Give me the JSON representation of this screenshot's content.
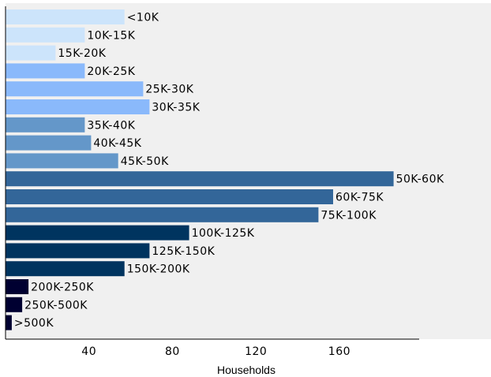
{
  "chart_data": {
    "type": "bar",
    "orientation": "horizontal",
    "categories": [
      "<10K",
      "10K-15K",
      "15K-20K",
      "20K-25K",
      "25K-30K",
      "30K-35K",
      "35K-40K",
      "40K-45K",
      "45K-50K",
      "50K-60K",
      "60K-75K",
      "75K-100K",
      "100K-125K",
      "125K-150K",
      "150K-200K",
      "200K-250K",
      "250K-500K",
      ">500K"
    ],
    "values": [
      57,
      38,
      24,
      38,
      66,
      69,
      38,
      41,
      54,
      186,
      157,
      150,
      88,
      69,
      57,
      11,
      8,
      3
    ],
    "colors": [
      "#cce4fb",
      "#cce4fb",
      "#cce4fb",
      "#8ab9fb",
      "#8ab9fb",
      "#8ab9fb",
      "#6497c9",
      "#6497c9",
      "#6497c9",
      "#336699",
      "#336699",
      "#336699",
      "#00345f",
      "#00345f",
      "#00345f",
      "#000031",
      "#000031",
      "#000031"
    ],
    "ticks": [
      40,
      80,
      120,
      160
    ],
    "xlabel": "Households",
    "xlim": [
      0,
      198
    ],
    "background": "#f0f0f0"
  }
}
